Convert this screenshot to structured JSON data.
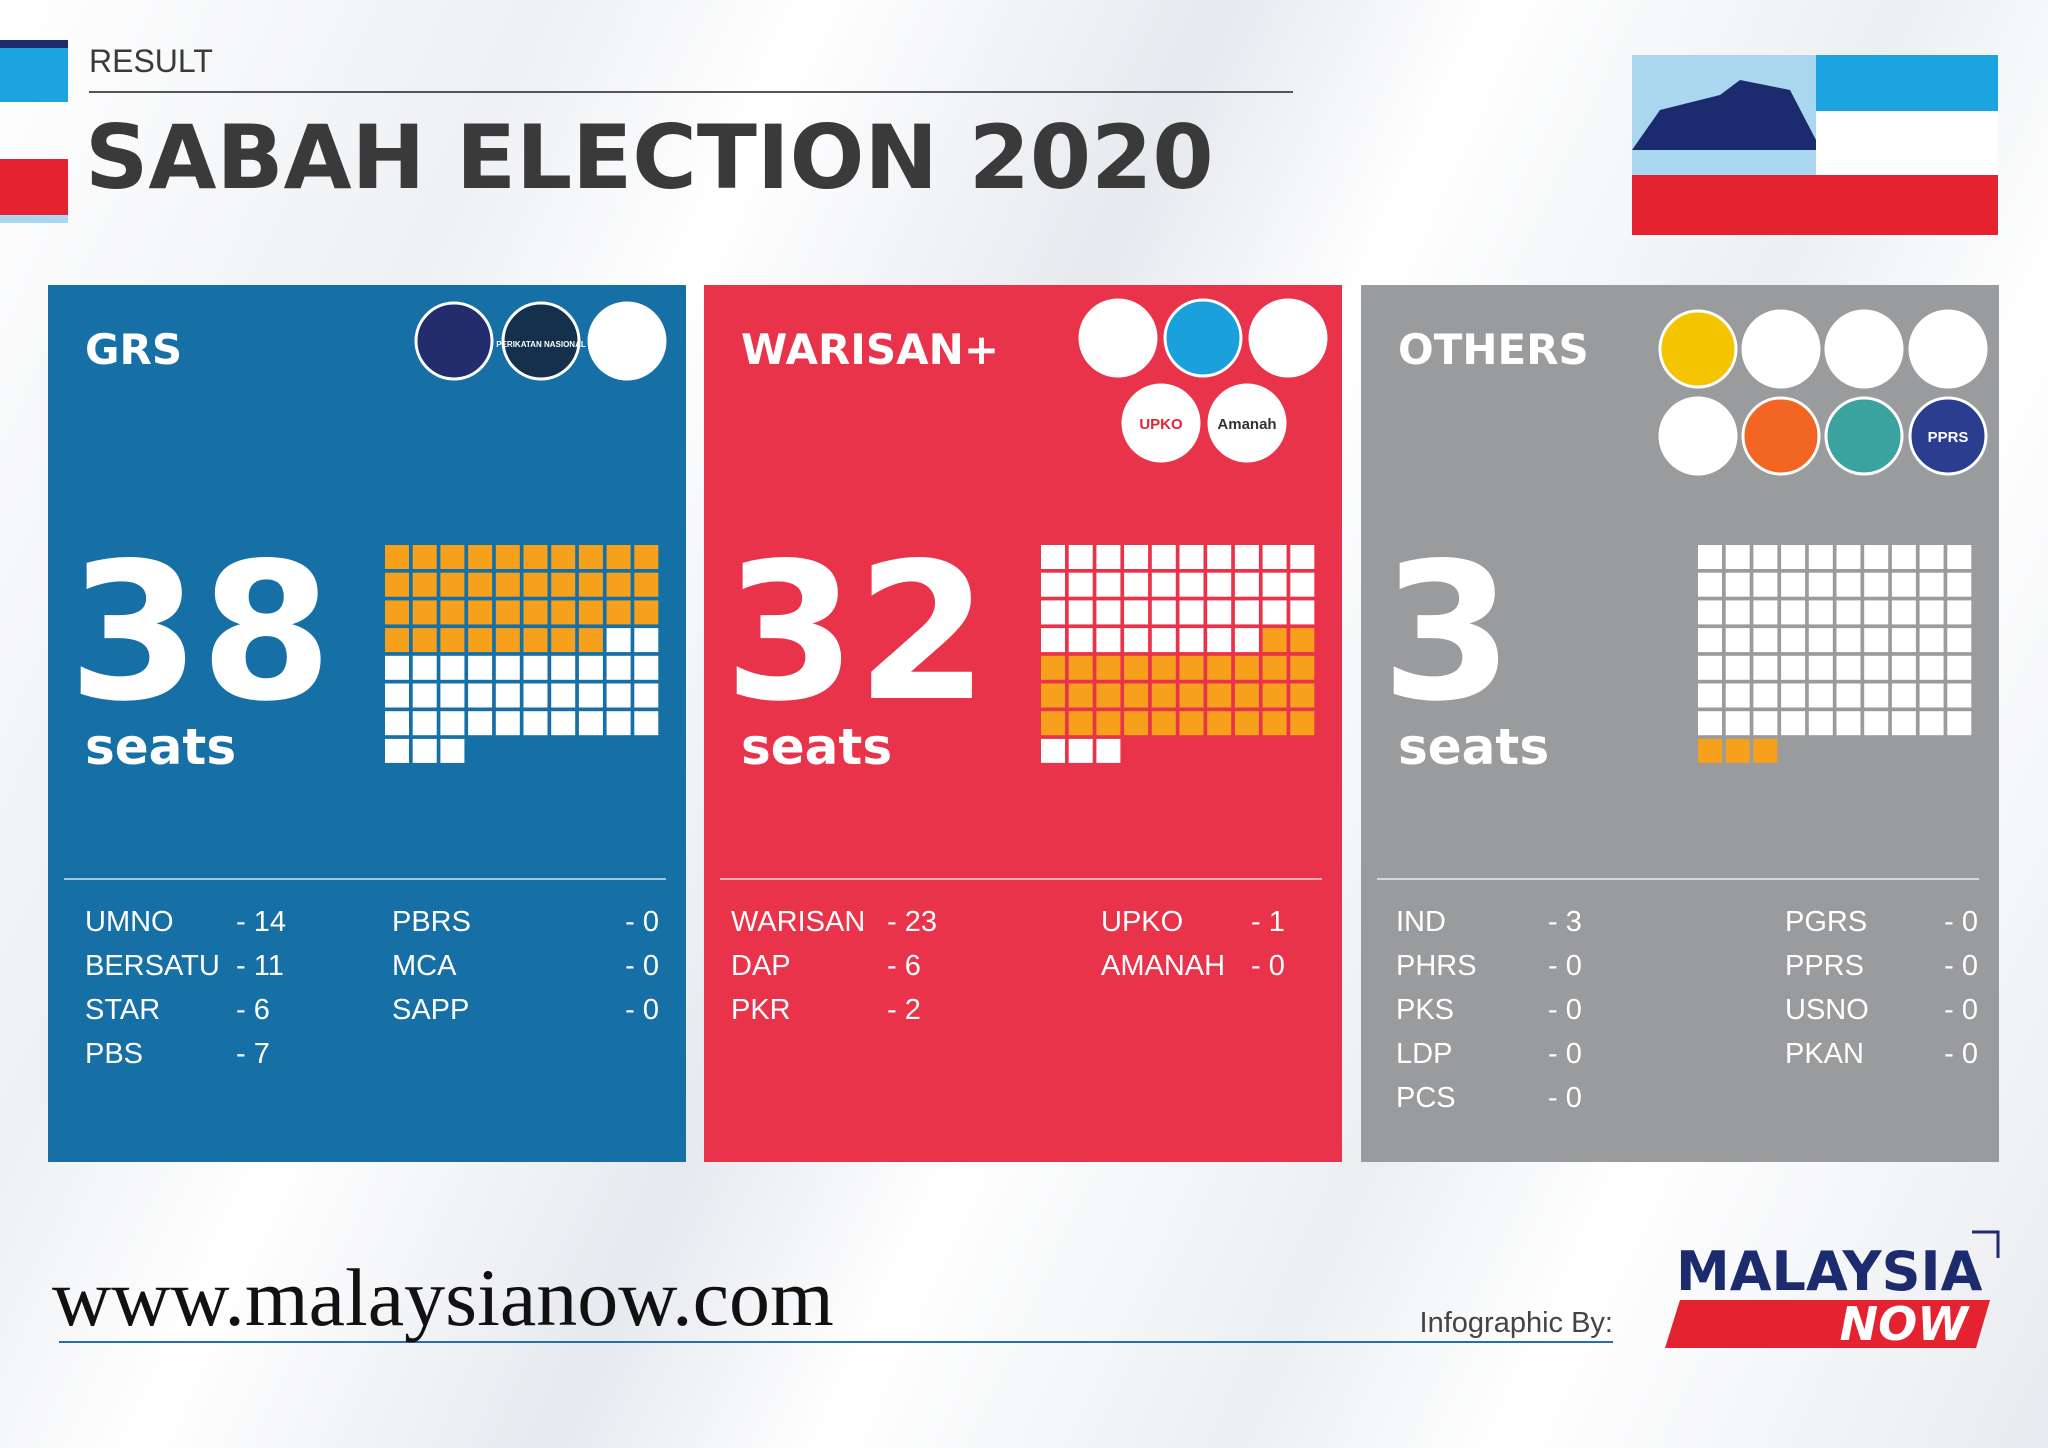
{
  "header": {
    "kicker": "RESULT",
    "title": "SABAH ELECTION 2020"
  },
  "panels": [
    {
      "name": "GRS",
      "seats": 38,
      "seats_label": "seats",
      "logos": [
        "PERIKATAN NASIONAL"
      ],
      "columns": [
        [
          {
            "name": "UMNO",
            "seats": "- 14"
          },
          {
            "name": "BERSATU",
            "seats": "- 11"
          },
          {
            "name": "STAR",
            "seats": "- 6"
          },
          {
            "name": "PBS",
            "seats": "- 7"
          }
        ],
        [
          {
            "name": "PBRS",
            "seats": "- 0"
          },
          {
            "name": "MCA",
            "seats": "- 0"
          },
          {
            "name": "SAPP",
            "seats": "- 0"
          }
        ]
      ]
    },
    {
      "name": "WARISAN+",
      "seats": 32,
      "seats_label": "seats",
      "logos": [
        "UPKO",
        "Amanah"
      ],
      "columns": [
        [
          {
            "name": "WARISAN",
            "seats": "- 23"
          },
          {
            "name": "DAP",
            "seats": "- 6"
          },
          {
            "name": "PKR",
            "seats": "- 2"
          }
        ],
        [
          {
            "name": "UPKO",
            "seats": "- 1"
          },
          {
            "name": "AMANAH",
            "seats": "- 0"
          }
        ]
      ]
    },
    {
      "name": "OTHERS",
      "seats": 3,
      "seats_label": "seats",
      "logos": [
        "PPRS"
      ],
      "columns": [
        [
          {
            "name": "IND",
            "seats": "- 3"
          },
          {
            "name": "PHRS",
            "seats": "- 0"
          },
          {
            "name": "PKS",
            "seats": "- 0"
          },
          {
            "name": "LDP",
            "seats": "- 0"
          },
          {
            "name": "PCS",
            "seats": "- 0"
          }
        ],
        [
          {
            "name": "PGRS",
            "seats": "- 0"
          },
          {
            "name": "PPRS",
            "seats": "- 0"
          },
          {
            "name": "USNO",
            "seats": "- 0"
          },
          {
            "name": "PKAN",
            "seats": "- 0"
          }
        ]
      ]
    }
  ],
  "footer": {
    "website": "www.malaysianow.com",
    "credit": "Infographic By:",
    "brand": "MALAYSIA",
    "brand_accent": "NOW"
  }
}
